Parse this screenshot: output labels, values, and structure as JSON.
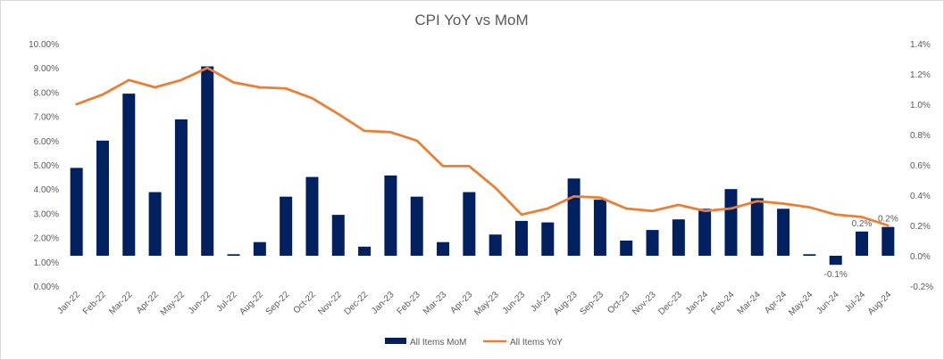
{
  "chart_data": {
    "type": "bar",
    "title": "CPI YoY vs MoM",
    "categories": [
      "Jan-22",
      "Feb-22",
      "Mar-22",
      "Apr-22",
      "May-22",
      "Jun-22",
      "Jul-22",
      "Aug-22",
      "Sep-22",
      "Oct-22",
      "Nov-22",
      "Dec-22",
      "Jan-23",
      "Feb-23",
      "Mar-23",
      "Apr-23",
      "May-23",
      "Jun-23",
      "Jul-23",
      "Aug-23",
      "Sep-23",
      "Oct-23",
      "Nov-23",
      "Dec-23",
      "Jan-24",
      "Feb-24",
      "Mar-24",
      "Apr-24",
      "May-24",
      "Jun-24",
      "Jul-24",
      "Aug-24"
    ],
    "series": [
      {
        "name": "All Items MoM",
        "type": "bar",
        "axis": "right",
        "color": "#002060",
        "values": [
          0.58,
          0.76,
          1.07,
          0.42,
          0.9,
          1.25,
          0.01,
          0.09,
          0.39,
          0.52,
          0.27,
          0.06,
          0.53,
          0.39,
          0.09,
          0.42,
          0.14,
          0.23,
          0.22,
          0.51,
          0.37,
          0.1,
          0.17,
          0.24,
          0.31,
          0.44,
          0.38,
          0.31,
          0.01,
          -0.06,
          0.16,
          0.19
        ]
      },
      {
        "name": "All Items YoY",
        "type": "line",
        "axis": "left",
        "color": "#ED7D31",
        "values": [
          7.5,
          7.9,
          8.5,
          8.2,
          8.5,
          9.0,
          8.4,
          8.2,
          8.15,
          7.75,
          7.1,
          6.4,
          6.35,
          6.0,
          4.95,
          4.95,
          4.05,
          2.95,
          3.2,
          3.7,
          3.65,
          3.2,
          3.1,
          3.35,
          3.1,
          3.2,
          3.5,
          3.4,
          3.25,
          2.95,
          2.85,
          2.5
        ]
      }
    ],
    "y_left": {
      "min": 0,
      "max": 10,
      "step": 1,
      "labels": [
        "0.00%",
        "1.00%",
        "2.00%",
        "3.00%",
        "4.00%",
        "5.00%",
        "6.00%",
        "7.00%",
        "8.00%",
        "9.00%",
        "10.00%"
      ]
    },
    "y_right": {
      "min": -0.2,
      "max": 1.4,
      "step": 0.2,
      "labels": [
        "-0.2%",
        "0.0%",
        "0.2%",
        "0.4%",
        "0.6%",
        "0.8%",
        "1.0%",
        "1.2%",
        "1.4%"
      ]
    },
    "data_labels": [
      {
        "index": 29,
        "series": "All Items MoM",
        "text": "-0.1%",
        "placement": "below"
      },
      {
        "index": 30,
        "series": "All Items MoM",
        "text": "0.2%",
        "placement": "above"
      },
      {
        "index": 31,
        "series": "All Items MoM",
        "text": "0.2%",
        "placement": "above"
      }
    ],
    "legend": {
      "position": "bottom"
    },
    "grid": false
  }
}
